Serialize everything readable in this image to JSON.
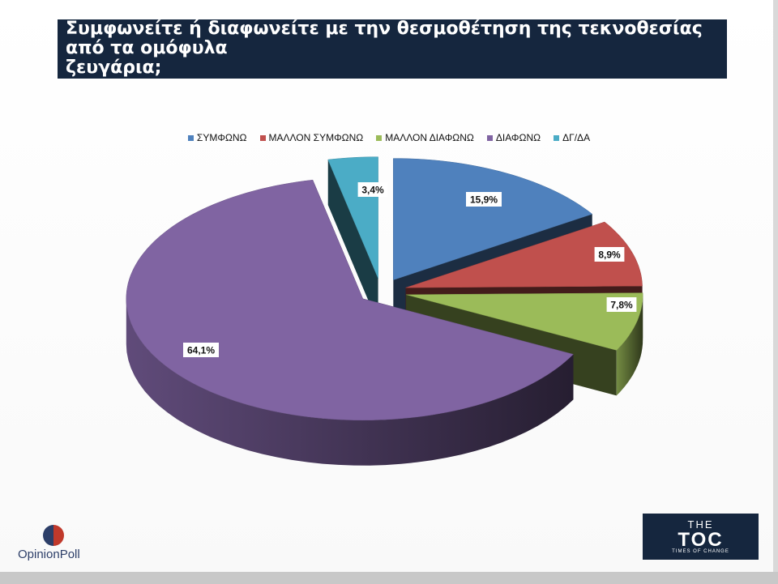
{
  "header": {
    "title_line1": "Συμφωνείτε ή διαφωνείτε με την θεσμοθέτηση της τεκνοθεσίας από τα ομόφυλα",
    "title_line2": "ζευγάρια;"
  },
  "chart_data": {
    "type": "pie",
    "style": "3d-exploded",
    "legend_position": "top",
    "categories": [
      "ΣΥΜΦΩΝΩ",
      "ΜΑΛΛΟΝ ΣΥΜΦΩΝΩ",
      "ΜΑΛΛΟΝ ΔΙΑΦΩΝΩ",
      "ΔΙΑΦΩΝΩ",
      "ΔΓ/ΔΑ"
    ],
    "values": [
      15.9,
      8.9,
      7.8,
      64.1,
      3.4
    ],
    "labels": [
      "15,9%",
      "8,9%",
      "7,8%",
      "64,1%",
      "3,4%"
    ],
    "colors": [
      "#4f81bd",
      "#c0504d",
      "#9bbb59",
      "#8064a2",
      "#4bacc6"
    ]
  },
  "logos": {
    "opinion_poll": "OpinionPoll",
    "toc_the": "THE",
    "toc_main": "TOC",
    "toc_sub": "TIMES OF CHANGE"
  }
}
